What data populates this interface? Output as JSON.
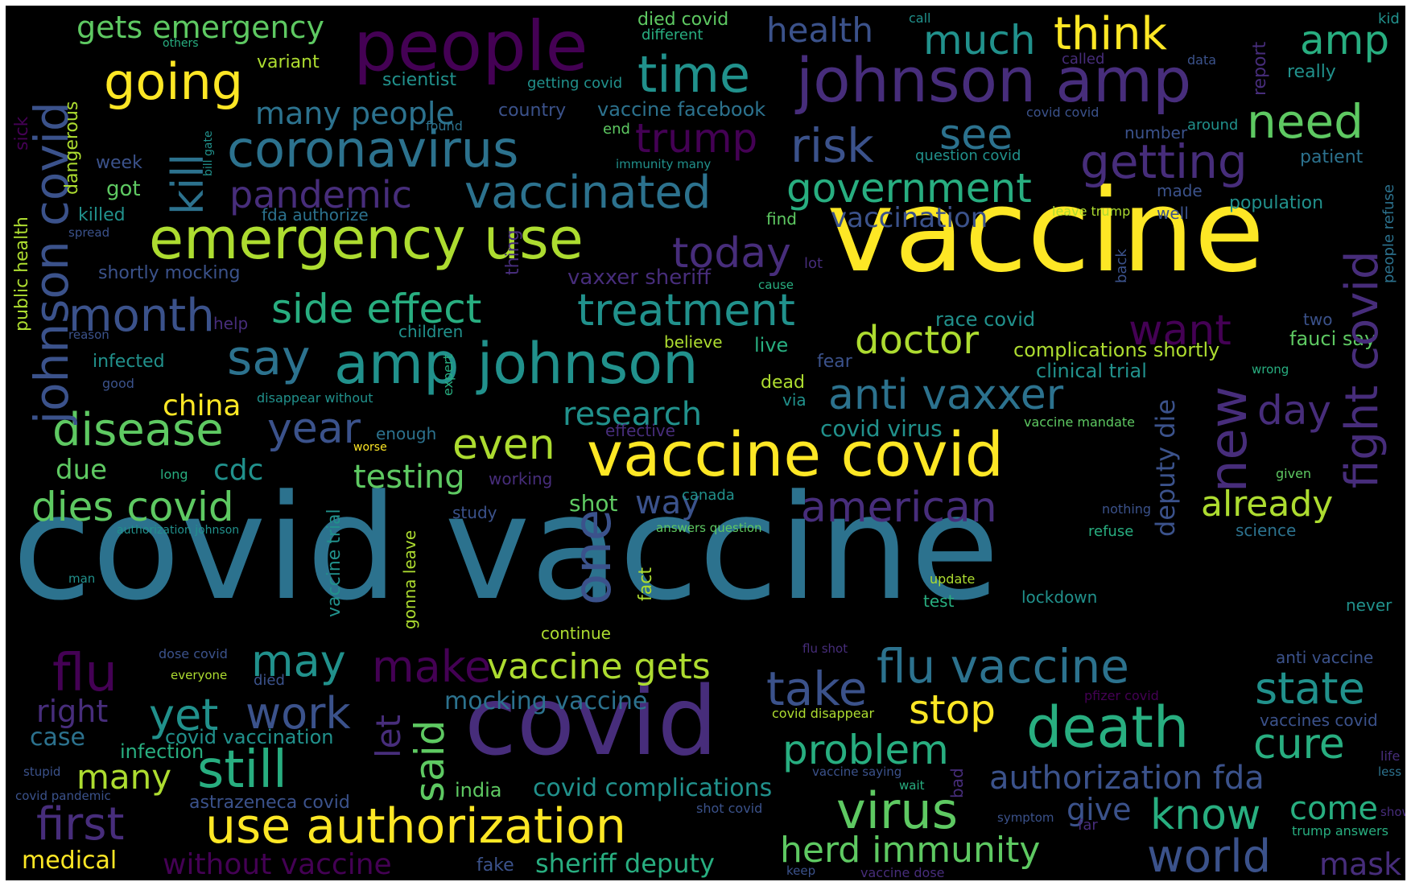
{
  "palette": {
    "background": "#000000",
    "purple": "#440154",
    "indigo": "#472d7b",
    "blue": "#3b528b",
    "slate": "#2c728e",
    "teal": "#21918c",
    "green": "#28ae80",
    "lime": "#5ec962",
    "yellowgreen": "#addc30",
    "yellow": "#fde725"
  },
  "words": [
    {
      "text": "covid vaccine",
      "color": "slate"
    },
    {
      "text": "vaccine",
      "color": "yellow"
    },
    {
      "text": "people",
      "color": "purple"
    },
    {
      "text": "covid",
      "color": "indigo"
    },
    {
      "text": "johnson amp",
      "color": "indigo"
    },
    {
      "text": "vaccine covid",
      "color": "yellow"
    },
    {
      "text": "amp johnson",
      "color": "teal"
    },
    {
      "text": "emergency use",
      "color": "yellowgreen"
    },
    {
      "text": "coronavirus",
      "color": "slate"
    },
    {
      "text": "use authorization",
      "color": "yellow"
    },
    {
      "text": "time",
      "color": "teal"
    },
    {
      "text": "death",
      "color": "green"
    },
    {
      "text": "vaccinated",
      "color": "slate"
    },
    {
      "text": "flu vaccine",
      "color": "slate"
    },
    {
      "text": "treatment",
      "color": "teal"
    },
    {
      "text": "still",
      "color": "green"
    },
    {
      "text": "first",
      "color": "indigo"
    },
    {
      "text": "think",
      "color": "yellow"
    },
    {
      "text": "much",
      "color": "teal"
    },
    {
      "text": "amp",
      "color": "green"
    },
    {
      "text": "need",
      "color": "lime"
    },
    {
      "text": "going",
      "color": "yellow"
    },
    {
      "text": "risk",
      "color": "blue"
    },
    {
      "text": "trump",
      "color": "purple"
    },
    {
      "text": "see",
      "color": "slate"
    },
    {
      "text": "getting",
      "color": "indigo"
    },
    {
      "text": "government",
      "color": "green"
    },
    {
      "text": "pandemic",
      "color": "indigo"
    },
    {
      "text": "side effect",
      "color": "green"
    },
    {
      "text": "anti vaxxer",
      "color": "slate"
    },
    {
      "text": "doctor",
      "color": "yellowgreen"
    },
    {
      "text": "month",
      "color": "blue"
    },
    {
      "text": "say",
      "color": "slate"
    },
    {
      "text": "disease",
      "color": "lime"
    },
    {
      "text": "dies covid",
      "color": "lime"
    },
    {
      "text": "american",
      "color": "indigo"
    },
    {
      "text": "virus",
      "color": "lime"
    },
    {
      "text": "cure",
      "color": "green"
    },
    {
      "text": "state",
      "color": "teal"
    },
    {
      "text": "take",
      "color": "blue"
    },
    {
      "text": "world",
      "color": "blue"
    },
    {
      "text": "know",
      "color": "green"
    },
    {
      "text": "problem",
      "color": "green"
    },
    {
      "text": "herd immunity",
      "color": "lime"
    },
    {
      "text": "flu",
      "color": "purple"
    },
    {
      "text": "may",
      "color": "teal"
    },
    {
      "text": "make",
      "color": "purple"
    },
    {
      "text": "vaccine gets",
      "color": "yellowgreen"
    },
    {
      "text": "work",
      "color": "blue"
    },
    {
      "text": "yet",
      "color": "teal"
    },
    {
      "text": "today",
      "color": "indigo"
    },
    {
      "text": "want",
      "color": "purple"
    },
    {
      "text": "day",
      "color": "indigo"
    },
    {
      "text": "year",
      "color": "blue"
    },
    {
      "text": "even",
      "color": "yellowgreen"
    },
    {
      "text": "research",
      "color": "teal"
    },
    {
      "text": "already",
      "color": "yellowgreen"
    },
    {
      "text": "stop",
      "color": "yellow"
    },
    {
      "text": "many",
      "color": "yellowgreen"
    },
    {
      "text": "testing",
      "color": "lime"
    },
    {
      "text": "way",
      "color": "blue"
    },
    {
      "text": "health",
      "color": "blue"
    },
    {
      "text": "gets emergency",
      "color": "lime"
    },
    {
      "text": "many people",
      "color": "slate"
    },
    {
      "text": "authorization fda",
      "color": "blue"
    },
    {
      "text": "come",
      "color": "green"
    },
    {
      "text": "give",
      "color": "blue"
    },
    {
      "text": "china",
      "color": "yellow"
    },
    {
      "text": "right",
      "color": "indigo"
    },
    {
      "text": "cdc",
      "color": "teal"
    },
    {
      "text": "due",
      "color": "lime"
    },
    {
      "text": "covid complications",
      "color": "teal"
    },
    {
      "text": "mocking vaccine",
      "color": "slate"
    },
    {
      "text": "without vaccine",
      "color": "purple"
    },
    {
      "text": "sheriff deputy",
      "color": "green"
    },
    {
      "text": "mask",
      "color": "indigo"
    },
    {
      "text": "medical",
      "color": "yellow"
    },
    {
      "text": "case",
      "color": "slate"
    },
    {
      "text": "infection",
      "color": "green"
    },
    {
      "text": "covid vaccination",
      "color": "teal"
    },
    {
      "text": "astrazeneca covid",
      "color": "blue"
    },
    {
      "text": "fake",
      "color": "blue"
    },
    {
      "text": "india",
      "color": "lime"
    },
    {
      "text": "shot",
      "color": "lime"
    },
    {
      "text": "vaccination",
      "color": "blue"
    },
    {
      "text": "covid virus",
      "color": "teal"
    },
    {
      "text": "clinical trial",
      "color": "teal"
    },
    {
      "text": "complications shortly",
      "color": "yellowgreen"
    },
    {
      "text": "race covid",
      "color": "teal"
    },
    {
      "text": "fauci say",
      "color": "lime"
    },
    {
      "text": "vaccine facebook",
      "color": "slate"
    },
    {
      "text": "variant",
      "color": "yellowgreen"
    },
    {
      "text": "scientist",
      "color": "teal"
    },
    {
      "text": "died covid",
      "color": "lime"
    },
    {
      "text": "different",
      "color": "green"
    },
    {
      "text": "others",
      "color": "green"
    },
    {
      "text": "kid",
      "color": "teal"
    },
    {
      "text": "really",
      "color": "teal"
    },
    {
      "text": "data",
      "color": "blue"
    },
    {
      "text": "called",
      "color": "indigo"
    },
    {
      "text": "call",
      "color": "teal"
    },
    {
      "text": "getting covid",
      "color": "teal"
    },
    {
      "text": "country",
      "color": "blue"
    },
    {
      "text": "end",
      "color": "lime"
    },
    {
      "text": "found",
      "color": "slate"
    },
    {
      "text": "covid covid",
      "color": "blue"
    },
    {
      "text": "number",
      "color": "blue"
    },
    {
      "text": "around",
      "color": "teal"
    },
    {
      "text": "question covid",
      "color": "teal"
    },
    {
      "text": "patient",
      "color": "slate"
    },
    {
      "text": "immunity many",
      "color": "teal"
    },
    {
      "text": "week",
      "color": "blue"
    },
    {
      "text": "got",
      "color": "lime"
    },
    {
      "text": "killed",
      "color": "teal"
    },
    {
      "text": "fda authorize",
      "color": "slate"
    },
    {
      "text": "find",
      "color": "lime"
    },
    {
      "text": "made",
      "color": "blue"
    },
    {
      "text": "population",
      "color": "teal"
    },
    {
      "text": "leave trump",
      "color": "yellowgreen"
    },
    {
      "text": "well",
      "color": "blue"
    },
    {
      "text": "spread",
      "color": "blue"
    },
    {
      "text": "shortly mocking",
      "color": "blue"
    },
    {
      "text": "vaxxer sheriff",
      "color": "indigo"
    },
    {
      "text": "lot",
      "color": "indigo"
    },
    {
      "text": "cause",
      "color": "green"
    },
    {
      "text": "help",
      "color": "indigo"
    },
    {
      "text": "reason",
      "color": "blue"
    },
    {
      "text": "children",
      "color": "teal"
    },
    {
      "text": "believe",
      "color": "yellowgreen"
    },
    {
      "text": "live",
      "color": "green"
    },
    {
      "text": "two",
      "color": "blue"
    },
    {
      "text": "infected",
      "color": "teal"
    },
    {
      "text": "fear",
      "color": "blue"
    },
    {
      "text": "dead",
      "color": "yellowgreen"
    },
    {
      "text": "via",
      "color": "teal"
    },
    {
      "text": "wrong",
      "color": "green"
    },
    {
      "text": "good",
      "color": "blue"
    },
    {
      "text": "disappear without",
      "color": "teal"
    },
    {
      "text": "enough",
      "color": "slate"
    },
    {
      "text": "worse",
      "color": "yellow"
    },
    {
      "text": "effective",
      "color": "indigo"
    },
    {
      "text": "vaccine mandate",
      "color": "lime"
    },
    {
      "text": "long",
      "color": "green"
    },
    {
      "text": "working",
      "color": "indigo"
    },
    {
      "text": "given",
      "color": "lime"
    },
    {
      "text": "canada",
      "color": "teal"
    },
    {
      "text": "study",
      "color": "blue"
    },
    {
      "text": "nothing",
      "color": "blue"
    },
    {
      "text": "authorization johnson",
      "color": "teal"
    },
    {
      "text": "answers question",
      "color": "lime"
    },
    {
      "text": "refuse",
      "color": "green"
    },
    {
      "text": "science",
      "color": "slate"
    },
    {
      "text": "man",
      "color": "teal"
    },
    {
      "text": "update",
      "color": "yellowgreen"
    },
    {
      "text": "test",
      "color": "green"
    },
    {
      "text": "lockdown",
      "color": "teal"
    },
    {
      "text": "never",
      "color": "teal"
    },
    {
      "text": "continue",
      "color": "yellowgreen"
    },
    {
      "text": "dose covid",
      "color": "blue"
    },
    {
      "text": "flu shot",
      "color": "indigo"
    },
    {
      "text": "everyone",
      "color": "yellowgreen"
    },
    {
      "text": "died",
      "color": "blue"
    },
    {
      "text": "anti vaccine",
      "color": "blue"
    },
    {
      "text": "pfizer covid",
      "color": "purple"
    },
    {
      "text": "covid disappear",
      "color": "yellowgreen"
    },
    {
      "text": "vaccines covid",
      "color": "blue"
    },
    {
      "text": "life",
      "color": "indigo"
    },
    {
      "text": "stupid",
      "color": "blue"
    },
    {
      "text": "vaccine saying",
      "color": "blue"
    },
    {
      "text": "less",
      "color": "slate"
    },
    {
      "text": "covid pandemic",
      "color": "blue"
    },
    {
      "text": "wait",
      "color": "green"
    },
    {
      "text": "shot covid",
      "color": "blue"
    },
    {
      "text": "symptom",
      "color": "blue"
    },
    {
      "text": "far",
      "color": "indigo"
    },
    {
      "text": "show",
      "color": "indigo"
    },
    {
      "text": "trump answers",
      "color": "green"
    },
    {
      "text": "keep",
      "color": "blue"
    },
    {
      "text": "vaccine dose",
      "color": "indigo"
    },
    {
      "text": "johnson covid",
      "color": "blue"
    },
    {
      "text": "kill",
      "color": "slate"
    },
    {
      "text": "fight covid",
      "color": "indigo"
    },
    {
      "text": "new",
      "color": "indigo"
    },
    {
      "text": "one",
      "color": "blue"
    },
    {
      "text": "said",
      "color": "lime"
    },
    {
      "text": "let",
      "color": "indigo"
    },
    {
      "text": "deputy die",
      "color": "blue"
    },
    {
      "text": "dangerous",
      "color": "yellowgreen"
    },
    {
      "text": "public health",
      "color": "yellowgreen"
    },
    {
      "text": "sick",
      "color": "purple"
    },
    {
      "text": "bill gate",
      "color": "teal"
    },
    {
      "text": "thing",
      "color": "indigo"
    },
    {
      "text": "expert",
      "color": "green"
    },
    {
      "text": "vaccine trial",
      "color": "teal"
    },
    {
      "text": "gonna leave",
      "color": "yellowgreen"
    },
    {
      "text": "fact",
      "color": "yellowgreen"
    },
    {
      "text": "report",
      "color": "indigo"
    },
    {
      "text": "back",
      "color": "blue"
    },
    {
      "text": "people refuse",
      "color": "slate"
    },
    {
      "text": "bad",
      "color": "indigo"
    }
  ]
}
